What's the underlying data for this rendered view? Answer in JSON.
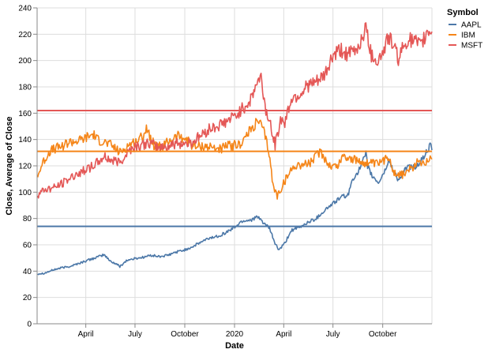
{
  "chart_data": {
    "type": "line",
    "x_label": "Date",
    "y_label": "Close, Average of Close",
    "x_range": [
      "2019-01-01",
      "2020-12-31"
    ],
    "y_range": [
      0,
      240
    ],
    "y_ticks": [
      0,
      20,
      40,
      60,
      80,
      100,
      120,
      140,
      160,
      180,
      200,
      220,
      240
    ],
    "x_ticks": [
      {
        "date": "2019-04-01",
        "label": "April"
      },
      {
        "date": "2019-07-01",
        "label": "July"
      },
      {
        "date": "2019-10-01",
        "label": "October"
      },
      {
        "date": "2020-01-01",
        "label": "2020"
      },
      {
        "date": "2020-04-01",
        "label": "April"
      },
      {
        "date": "2020-07-01",
        "label": "July"
      },
      {
        "date": "2020-10-01",
        "label": "October"
      }
    ],
    "grid": true,
    "legend": {
      "title": "Symbol",
      "position": "top-right"
    },
    "series": [
      {
        "name": "AAPL",
        "color": "#4c78a8",
        "average": 74,
        "points": [
          [
            "2019-01-02",
            38
          ],
          [
            "2019-01-15",
            38.5
          ],
          [
            "2019-01-31",
            41
          ],
          [
            "2019-02-15",
            42.5
          ],
          [
            "2019-03-01",
            43.5
          ],
          [
            "2019-03-20",
            46
          ],
          [
            "2019-04-10",
            49
          ],
          [
            "2019-04-25",
            51
          ],
          [
            "2019-05-05",
            52.5
          ],
          [
            "2019-05-15",
            48
          ],
          [
            "2019-05-31",
            44.5
          ],
          [
            "2019-06-03",
            43.5
          ],
          [
            "2019-06-15",
            48
          ],
          [
            "2019-06-30",
            49.5
          ],
          [
            "2019-07-15",
            50.5
          ],
          [
            "2019-07-31",
            52
          ],
          [
            "2019-08-15",
            51
          ],
          [
            "2019-08-31",
            52
          ],
          [
            "2019-09-15",
            54.5
          ],
          [
            "2019-09-30",
            56
          ],
          [
            "2019-10-15",
            58.5
          ],
          [
            "2019-10-31",
            62
          ],
          [
            "2019-11-15",
            65
          ],
          [
            "2019-11-30",
            66.5
          ],
          [
            "2019-12-15",
            69
          ],
          [
            "2019-12-31",
            73
          ],
          [
            "2020-01-15",
            78
          ],
          [
            "2020-01-31",
            79
          ],
          [
            "2020-02-12",
            81
          ],
          [
            "2020-02-21",
            78
          ],
          [
            "2020-03-06",
            72
          ],
          [
            "2020-03-16",
            61
          ],
          [
            "2020-03-23",
            56
          ],
          [
            "2020-04-03",
            61
          ],
          [
            "2020-04-15",
            71
          ],
          [
            "2020-04-30",
            73
          ],
          [
            "2020-05-15",
            77
          ],
          [
            "2020-05-31",
            80
          ],
          [
            "2020-06-15",
            86
          ],
          [
            "2020-06-30",
            91
          ],
          [
            "2020-07-15",
            96
          ],
          [
            "2020-07-30",
            98
          ],
          [
            "2020-08-05",
            109
          ],
          [
            "2020-08-20",
            118
          ],
          [
            "2020-08-31",
            129
          ],
          [
            "2020-09-03",
            120
          ],
          [
            "2020-09-10",
            113
          ],
          [
            "2020-09-23",
            107
          ],
          [
            "2020-10-05",
            116
          ],
          [
            "2020-10-12",
            124
          ],
          [
            "2020-10-30",
            109
          ],
          [
            "2020-11-15",
            119
          ],
          [
            "2020-11-30",
            119
          ],
          [
            "2020-12-10",
            123
          ],
          [
            "2020-12-22",
            131
          ],
          [
            "2020-12-29",
            136
          ],
          [
            "2020-12-31",
            132
          ]
        ]
      },
      {
        "name": "IBM",
        "color": "#f58518",
        "average": 131,
        "points": [
          [
            "2019-01-02",
            112
          ],
          [
            "2019-01-10",
            121
          ],
          [
            "2019-01-24",
            131
          ],
          [
            "2019-02-15",
            135
          ],
          [
            "2019-03-01",
            138
          ],
          [
            "2019-03-20",
            139
          ],
          [
            "2019-04-05",
            142
          ],
          [
            "2019-04-15",
            144
          ],
          [
            "2019-04-22",
            140
          ],
          [
            "2019-05-05",
            138
          ],
          [
            "2019-05-20",
            135
          ],
          [
            "2019-06-03",
            130
          ],
          [
            "2019-06-20",
            136
          ],
          [
            "2019-07-01",
            138
          ],
          [
            "2019-07-15",
            142
          ],
          [
            "2019-07-22",
            149
          ],
          [
            "2019-08-05",
            136
          ],
          [
            "2019-08-20",
            134
          ],
          [
            "2019-09-05",
            140
          ],
          [
            "2019-09-20",
            143
          ],
          [
            "2019-10-05",
            140
          ],
          [
            "2019-10-18",
            134
          ],
          [
            "2019-11-05",
            135
          ],
          [
            "2019-11-20",
            134
          ],
          [
            "2019-12-05",
            133
          ],
          [
            "2019-12-20",
            135
          ],
          [
            "2020-01-10",
            136
          ],
          [
            "2020-01-22",
            142
          ],
          [
            "2020-02-05",
            150
          ],
          [
            "2020-02-15",
            154
          ],
          [
            "2020-02-24",
            146
          ],
          [
            "2020-03-05",
            130
          ],
          [
            "2020-03-12",
            105
          ],
          [
            "2020-03-20",
            97
          ],
          [
            "2020-04-05",
            110
          ],
          [
            "2020-04-20",
            120
          ],
          [
            "2020-05-05",
            121
          ],
          [
            "2020-05-20",
            122
          ],
          [
            "2020-06-08",
            131
          ],
          [
            "2020-06-25",
            120
          ],
          [
            "2020-07-10",
            120
          ],
          [
            "2020-07-20",
            128
          ],
          [
            "2020-08-05",
            125
          ],
          [
            "2020-08-20",
            123
          ],
          [
            "2020-09-05",
            122
          ],
          [
            "2020-09-20",
            121
          ],
          [
            "2020-10-05",
            124
          ],
          [
            "2020-10-12",
            128
          ],
          [
            "2020-10-22",
            115
          ],
          [
            "2020-11-05",
            113
          ],
          [
            "2020-11-20",
            117
          ],
          [
            "2020-12-05",
            123
          ],
          [
            "2020-12-20",
            124
          ],
          [
            "2020-12-31",
            125
          ]
        ]
      },
      {
        "name": "MSFT",
        "color": "#e45756",
        "average": 162,
        "points": [
          [
            "2019-01-02",
            98
          ],
          [
            "2019-01-15",
            102
          ],
          [
            "2019-01-31",
            103
          ],
          [
            "2019-02-15",
            106
          ],
          [
            "2019-03-01",
            110
          ],
          [
            "2019-03-20",
            115
          ],
          [
            "2019-04-10",
            119
          ],
          [
            "2019-04-25",
            123
          ],
          [
            "2019-05-05",
            127
          ],
          [
            "2019-05-20",
            124
          ],
          [
            "2019-06-03",
            123
          ],
          [
            "2019-06-20",
            132
          ],
          [
            "2019-07-01",
            135
          ],
          [
            "2019-07-15",
            136
          ],
          [
            "2019-07-31",
            137
          ],
          [
            "2019-08-15",
            134
          ],
          [
            "2019-08-31",
            135
          ],
          [
            "2019-09-15",
            137
          ],
          [
            "2019-09-30",
            137
          ],
          [
            "2019-10-15",
            138
          ],
          [
            "2019-10-31",
            143
          ],
          [
            "2019-11-15",
            148
          ],
          [
            "2019-11-30",
            150
          ],
          [
            "2019-12-15",
            153
          ],
          [
            "2019-12-31",
            157
          ],
          [
            "2020-01-15",
            163
          ],
          [
            "2020-01-31",
            170
          ],
          [
            "2020-02-10",
            182
          ],
          [
            "2020-02-19",
            187
          ],
          [
            "2020-02-28",
            162
          ],
          [
            "2020-03-09",
            150
          ],
          [
            "2020-03-16",
            135
          ],
          [
            "2020-03-26",
            155
          ],
          [
            "2020-04-03",
            153
          ],
          [
            "2020-04-15",
            171
          ],
          [
            "2020-04-30",
            174
          ],
          [
            "2020-05-15",
            181
          ],
          [
            "2020-05-31",
            183
          ],
          [
            "2020-06-15",
            188
          ],
          [
            "2020-06-30",
            203
          ],
          [
            "2020-07-15",
            208
          ],
          [
            "2020-07-31",
            205
          ],
          [
            "2020-08-15",
            209
          ],
          [
            "2020-08-31",
            225
          ],
          [
            "2020-09-03",
            217
          ],
          [
            "2020-09-10",
            205
          ],
          [
            "2020-09-23",
            200
          ],
          [
            "2020-10-05",
            210
          ],
          [
            "2020-10-12",
            220
          ],
          [
            "2020-10-30",
            202
          ],
          [
            "2020-11-15",
            216
          ],
          [
            "2020-11-30",
            214
          ],
          [
            "2020-12-10",
            210
          ],
          [
            "2020-12-22",
            222
          ],
          [
            "2020-12-31",
            222
          ]
        ]
      }
    ]
  }
}
